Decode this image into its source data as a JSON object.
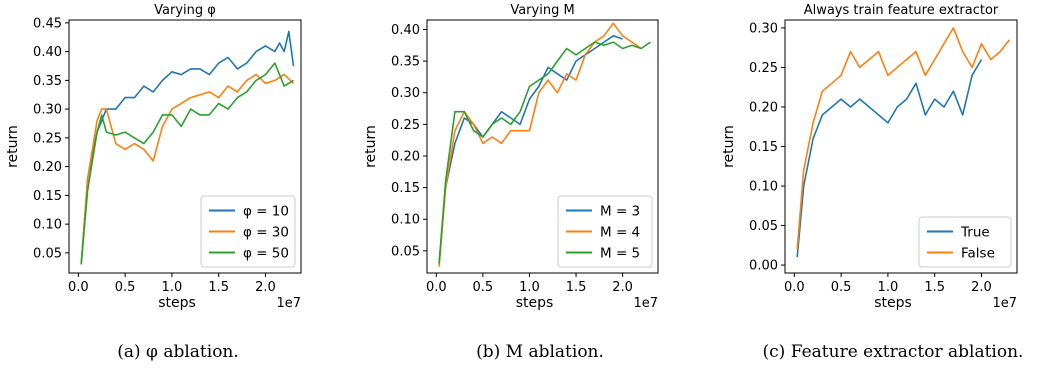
{
  "captions": [
    "(a) φ ablation.",
    "(b) M ablation.",
    "(c) Feature extractor ablation."
  ],
  "chart_data": [
    {
      "type": "line",
      "title": "Varying φ",
      "xlabel": "steps",
      "ylabel": "return",
      "x_scale_label": "1e7",
      "xlim": [
        -0.1,
        2.38
      ],
      "ylim": [
        0.015,
        0.455
      ],
      "xticks": [
        0.0,
        0.5,
        1.0,
        1.5,
        2.0
      ],
      "xtick_labels": [
        "0.0",
        "0.5",
        "1.0",
        "1.5",
        "2.0"
      ],
      "yticks": [
        0.05,
        0.1,
        0.15,
        0.2,
        0.25,
        0.3,
        0.35,
        0.4,
        0.45
      ],
      "ytick_labels": [
        "0.05",
        "0.10",
        "0.15",
        "0.20",
        "0.25",
        "0.30",
        "0.35",
        "0.40",
        "0.45"
      ],
      "legend_position": "lower-right",
      "series": [
        {
          "name": "φ = 10",
          "color": "#1f77b4",
          "x": [
            0.03,
            0.1,
            0.2,
            0.3,
            0.4,
            0.5,
            0.6,
            0.7,
            0.8,
            0.9,
            1.0,
            1.1,
            1.2,
            1.3,
            1.4,
            1.5,
            1.6,
            1.7,
            1.8,
            1.9,
            2.0,
            2.1,
            2.15,
            2.2,
            2.25,
            2.3
          ],
          "y": [
            0.03,
            0.18,
            0.26,
            0.3,
            0.3,
            0.32,
            0.32,
            0.34,
            0.33,
            0.35,
            0.365,
            0.36,
            0.37,
            0.37,
            0.36,
            0.38,
            0.39,
            0.37,
            0.38,
            0.4,
            0.41,
            0.4,
            0.415,
            0.4,
            0.435,
            0.375
          ]
        },
        {
          "name": "φ = 30",
          "color": "#ff7f0e",
          "x": [
            0.03,
            0.1,
            0.2,
            0.25,
            0.3,
            0.4,
            0.5,
            0.6,
            0.7,
            0.8,
            0.9,
            1.0,
            1.1,
            1.2,
            1.3,
            1.4,
            1.5,
            1.6,
            1.7,
            1.8,
            1.9,
            2.0,
            2.1,
            2.2,
            2.3
          ],
          "y": [
            0.03,
            0.18,
            0.28,
            0.3,
            0.3,
            0.24,
            0.23,
            0.24,
            0.23,
            0.21,
            0.27,
            0.3,
            0.31,
            0.32,
            0.325,
            0.33,
            0.32,
            0.34,
            0.33,
            0.35,
            0.36,
            0.345,
            0.35,
            0.36,
            0.345
          ]
        },
        {
          "name": "φ = 50",
          "color": "#2ca02c",
          "x": [
            0.03,
            0.1,
            0.2,
            0.25,
            0.3,
            0.4,
            0.5,
            0.6,
            0.7,
            0.8,
            0.9,
            1.0,
            1.1,
            1.2,
            1.3,
            1.4,
            1.5,
            1.6,
            1.7,
            1.8,
            1.9,
            2.0,
            2.1,
            2.2,
            2.3
          ],
          "y": [
            0.03,
            0.16,
            0.26,
            0.29,
            0.26,
            0.255,
            0.26,
            0.25,
            0.24,
            0.26,
            0.29,
            0.29,
            0.27,
            0.3,
            0.29,
            0.29,
            0.31,
            0.3,
            0.32,
            0.33,
            0.35,
            0.36,
            0.38,
            0.34,
            0.35
          ]
        }
      ]
    },
    {
      "type": "line",
      "title": "Varying M",
      "xlabel": "steps",
      "ylabel": "return",
      "x_scale_label": "1e7",
      "xlim": [
        -0.1,
        2.38
      ],
      "ylim": [
        0.015,
        0.415
      ],
      "xticks": [
        0.0,
        0.5,
        1.0,
        1.5,
        2.0
      ],
      "xtick_labels": [
        "0.0",
        "0.5",
        "1.0",
        "1.5",
        "2.0"
      ],
      "yticks": [
        0.05,
        0.1,
        0.15,
        0.2,
        0.25,
        0.3,
        0.35,
        0.4
      ],
      "ytick_labels": [
        "0.05",
        "0.10",
        "0.15",
        "0.20",
        "0.25",
        "0.30",
        "0.35",
        "0.40"
      ],
      "legend_position": "lower-right",
      "series": [
        {
          "name": "M = 3",
          "color": "#1f77b4",
          "x": [
            0.03,
            0.1,
            0.2,
            0.3,
            0.4,
            0.5,
            0.6,
            0.7,
            0.8,
            0.9,
            1.0,
            1.1,
            1.2,
            1.3,
            1.4,
            1.5,
            1.6,
            1.7,
            1.8,
            1.9,
            2.0
          ],
          "y": [
            0.03,
            0.15,
            0.22,
            0.26,
            0.25,
            0.23,
            0.25,
            0.27,
            0.26,
            0.25,
            0.29,
            0.31,
            0.34,
            0.33,
            0.32,
            0.35,
            0.36,
            0.37,
            0.38,
            0.39,
            0.385
          ]
        },
        {
          "name": "M = 4",
          "color": "#ff7f0e",
          "x": [
            0.03,
            0.1,
            0.2,
            0.3,
            0.4,
            0.5,
            0.6,
            0.7,
            0.8,
            0.9,
            1.0,
            1.1,
            1.2,
            1.3,
            1.4,
            1.5,
            1.6,
            1.7,
            1.8,
            1.9,
            2.0,
            2.1,
            2.2
          ],
          "y": [
            0.025,
            0.15,
            0.24,
            0.27,
            0.25,
            0.22,
            0.23,
            0.22,
            0.24,
            0.24,
            0.24,
            0.3,
            0.32,
            0.3,
            0.33,
            0.32,
            0.36,
            0.38,
            0.39,
            0.41,
            0.39,
            0.38,
            0.37
          ]
        },
        {
          "name": "M = 5",
          "color": "#2ca02c",
          "x": [
            0.03,
            0.1,
            0.2,
            0.3,
            0.4,
            0.5,
            0.6,
            0.7,
            0.8,
            0.9,
            1.0,
            1.1,
            1.2,
            1.3,
            1.4,
            1.5,
            1.6,
            1.7,
            1.8,
            1.9,
            2.0,
            2.1,
            2.2,
            2.3
          ],
          "y": [
            0.03,
            0.16,
            0.27,
            0.27,
            0.24,
            0.23,
            0.25,
            0.26,
            0.25,
            0.27,
            0.31,
            0.32,
            0.33,
            0.35,
            0.37,
            0.36,
            0.37,
            0.38,
            0.375,
            0.38,
            0.37,
            0.375,
            0.37,
            0.38
          ]
        }
      ]
    },
    {
      "type": "line",
      "title": "Always train feature extractor",
      "xlabel": "steps",
      "ylabel": "return",
      "x_scale_label": "1e7",
      "xlim": [
        -0.1,
        2.38
      ],
      "ylim": [
        -0.01,
        0.31
      ],
      "xticks": [
        0.0,
        0.5,
        1.0,
        1.5,
        2.0
      ],
      "xtick_labels": [
        "0.0",
        "0.5",
        "1.0",
        "1.5",
        "2.0"
      ],
      "yticks": [
        0.0,
        0.05,
        0.1,
        0.15,
        0.2,
        0.25,
        0.3
      ],
      "ytick_labels": [
        "0.00",
        "0.05",
        "0.10",
        "0.15",
        "0.20",
        "0.25",
        "0.30"
      ],
      "legend_position": "lower-right",
      "series": [
        {
          "name": "True",
          "color": "#1f77b4",
          "x": [
            0.03,
            0.1,
            0.2,
            0.3,
            0.4,
            0.5,
            0.6,
            0.7,
            0.8,
            0.9,
            1.0,
            1.1,
            1.2,
            1.3,
            1.4,
            1.5,
            1.6,
            1.7,
            1.8,
            1.9,
            2.0
          ],
          "y": [
            0.01,
            0.1,
            0.16,
            0.19,
            0.2,
            0.21,
            0.2,
            0.21,
            0.2,
            0.19,
            0.18,
            0.2,
            0.21,
            0.23,
            0.19,
            0.21,
            0.2,
            0.22,
            0.19,
            0.24,
            0.26
          ]
        },
        {
          "name": "False",
          "color": "#ff7f0e",
          "x": [
            0.03,
            0.1,
            0.2,
            0.3,
            0.4,
            0.5,
            0.6,
            0.7,
            0.8,
            0.9,
            1.0,
            1.1,
            1.2,
            1.3,
            1.4,
            1.5,
            1.6,
            1.7,
            1.8,
            1.9,
            2.0,
            2.1,
            2.2,
            2.3
          ],
          "y": [
            0.02,
            0.12,
            0.18,
            0.22,
            0.23,
            0.24,
            0.27,
            0.25,
            0.26,
            0.27,
            0.24,
            0.25,
            0.26,
            0.27,
            0.24,
            0.26,
            0.28,
            0.3,
            0.27,
            0.25,
            0.28,
            0.26,
            0.27,
            0.285
          ]
        }
      ]
    }
  ]
}
